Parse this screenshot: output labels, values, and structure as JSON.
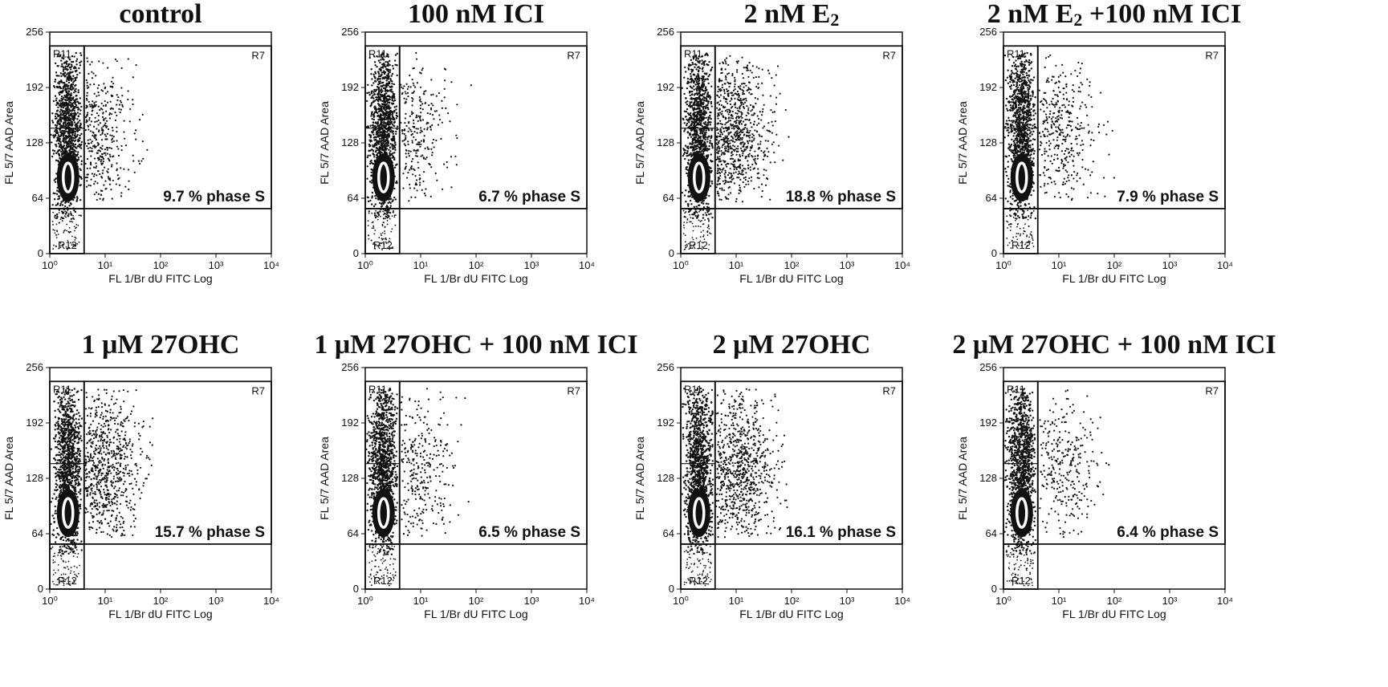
{
  "chart_data": [
    {
      "type": "scatter",
      "title": "control",
      "xlabel": "FL 1/Br dU  FITC Log",
      "ylabel": "FL 5/7 AAD Area",
      "xscale": "log",
      "xlim": [
        1,
        10000
      ],
      "ylim": [
        0,
        256
      ],
      "x_ticks": [
        "10⁰",
        "10¹",
        "10²",
        "10³",
        "10⁴"
      ],
      "y_ticks": [
        "0",
        "64",
        "128",
        "192",
        "256"
      ],
      "regions": [
        "R11",
        "R12",
        "R7"
      ],
      "annotation": "9.7 % phase S",
      "s_phase_percent": 9.7,
      "s_phase_extent": 0.8
    },
    {
      "type": "scatter",
      "title": "100 nM ICI",
      "xlabel": "FL 1/Br dU  FITC Log",
      "ylabel": "FL 5/7 AAD Area",
      "xscale": "log",
      "xlim": [
        1,
        10000
      ],
      "ylim": [
        0,
        256
      ],
      "x_ticks": [
        "10⁰",
        "10¹",
        "10²",
        "10³",
        "10⁴"
      ],
      "y_ticks": [
        "0",
        "64",
        "128",
        "192",
        "256"
      ],
      "regions": [
        "R11",
        "R12",
        "R7"
      ],
      "annotation": "6.7 % phase S",
      "s_phase_percent": 6.7,
      "s_phase_extent": 0.85
    },
    {
      "type": "scatter",
      "title": "2 nM E",
      "title_subscript": "2",
      "xlabel": "FL 1/Br dU  FITC Log",
      "ylabel": "FL 5/7 AAD Area",
      "xscale": "log",
      "xlim": [
        1,
        10000
      ],
      "ylim": [
        0,
        256
      ],
      "x_ticks": [
        "10⁰",
        "10¹",
        "10²",
        "10³",
        "10⁴"
      ],
      "y_ticks": [
        "0",
        "64",
        "128",
        "192",
        "256"
      ],
      "regions": [
        "R11",
        "R12",
        "R7"
      ],
      "annotation": "18.8 % phase S",
      "s_phase_percent": 18.8,
      "s_phase_extent": 0.9
    },
    {
      "type": "scatter",
      "title": "2 nM E",
      "title_subscript": "2",
      "title_suffix": " +100 nM ICI",
      "xlabel": "FL 1/Br dU  FITC Log",
      "ylabel": "FL 5/7 AAD Area",
      "xscale": "log",
      "xlim": [
        1,
        10000
      ],
      "ylim": [
        0,
        256
      ],
      "x_ticks": [
        "10⁰",
        "10¹",
        "10²",
        "10³",
        "10⁴"
      ],
      "y_ticks": [
        "0",
        "64",
        "128",
        "192",
        "256"
      ],
      "regions": [
        "R11",
        "R12",
        "R7"
      ],
      "annotation": "7.9 % phase S",
      "s_phase_percent": 7.9,
      "s_phase_extent": 1.0
    },
    {
      "type": "scatter",
      "title": "1 μM 27OHC",
      "xlabel": "FL 1/Br dU  FITC Log",
      "ylabel": "FL 5/7 AAD Area",
      "xscale": "log",
      "xlim": [
        1,
        10000
      ],
      "ylim": [
        0,
        256
      ],
      "x_ticks": [
        "10⁰",
        "10¹",
        "10²",
        "10³",
        "10⁴"
      ],
      "y_ticks": [
        "0",
        "64",
        "128",
        "192",
        "256"
      ],
      "regions": [
        "R11",
        "R12",
        "R7"
      ],
      "annotation": "15.7 % phase S",
      "s_phase_percent": 15.7,
      "s_phase_extent": 0.95
    },
    {
      "type": "scatter",
      "title": "1 μM 27OHC + 100 nM ICI",
      "xlabel": "FL 1/Br dU  FITC Log",
      "ylabel": "FL 5/7 AAD Area",
      "xscale": "log",
      "xlim": [
        1,
        10000
      ],
      "ylim": [
        0,
        256
      ],
      "x_ticks": [
        "10⁰",
        "10¹",
        "10²",
        "10³",
        "10⁴"
      ],
      "y_ticks": [
        "0",
        "64",
        "128",
        "192",
        "256"
      ],
      "regions": [
        "R11",
        "R12",
        "R7"
      ],
      "annotation": "6.5 % phase S",
      "s_phase_percent": 6.5,
      "s_phase_extent": 0.95
    },
    {
      "type": "scatter",
      "title": "2 μM 27OHC",
      "xlabel": "FL 1/Br dU  FITC Log",
      "ylabel": "FL 5/7 AAD Area",
      "xscale": "log",
      "xlim": [
        1,
        10000
      ],
      "ylim": [
        0,
        256
      ],
      "x_ticks": [
        "10⁰",
        "10¹",
        "10²",
        "10³",
        "10⁴"
      ],
      "y_ticks": [
        "0",
        "64",
        "128",
        "192",
        "256"
      ],
      "regions": [
        "R11",
        "R12",
        "R7"
      ],
      "annotation": "16.1 % phase S",
      "s_phase_percent": 16.1,
      "s_phase_extent": 1.05
    },
    {
      "type": "scatter",
      "title": "2 μM 27OHC + 100 nM ICI",
      "xlabel": "FL 1/Br dU  FITC Log",
      "ylabel": "FL 5/7 AAD Area",
      "xscale": "log",
      "xlim": [
        1,
        10000
      ],
      "ylim": [
        0,
        256
      ],
      "x_ticks": [
        "10⁰",
        "10¹",
        "10²",
        "10³",
        "10⁴"
      ],
      "y_ticks": [
        "0",
        "64",
        "128",
        "192",
        "256"
      ],
      "regions": [
        "R11",
        "R12",
        "R7"
      ],
      "annotation": "6.4 % phase S",
      "s_phase_percent": 6.4,
      "s_phase_extent": 1.05
    }
  ],
  "colors": {
    "ink": "#111111",
    "background": "#ffffff",
    "gate_core": "#ffffff"
  }
}
